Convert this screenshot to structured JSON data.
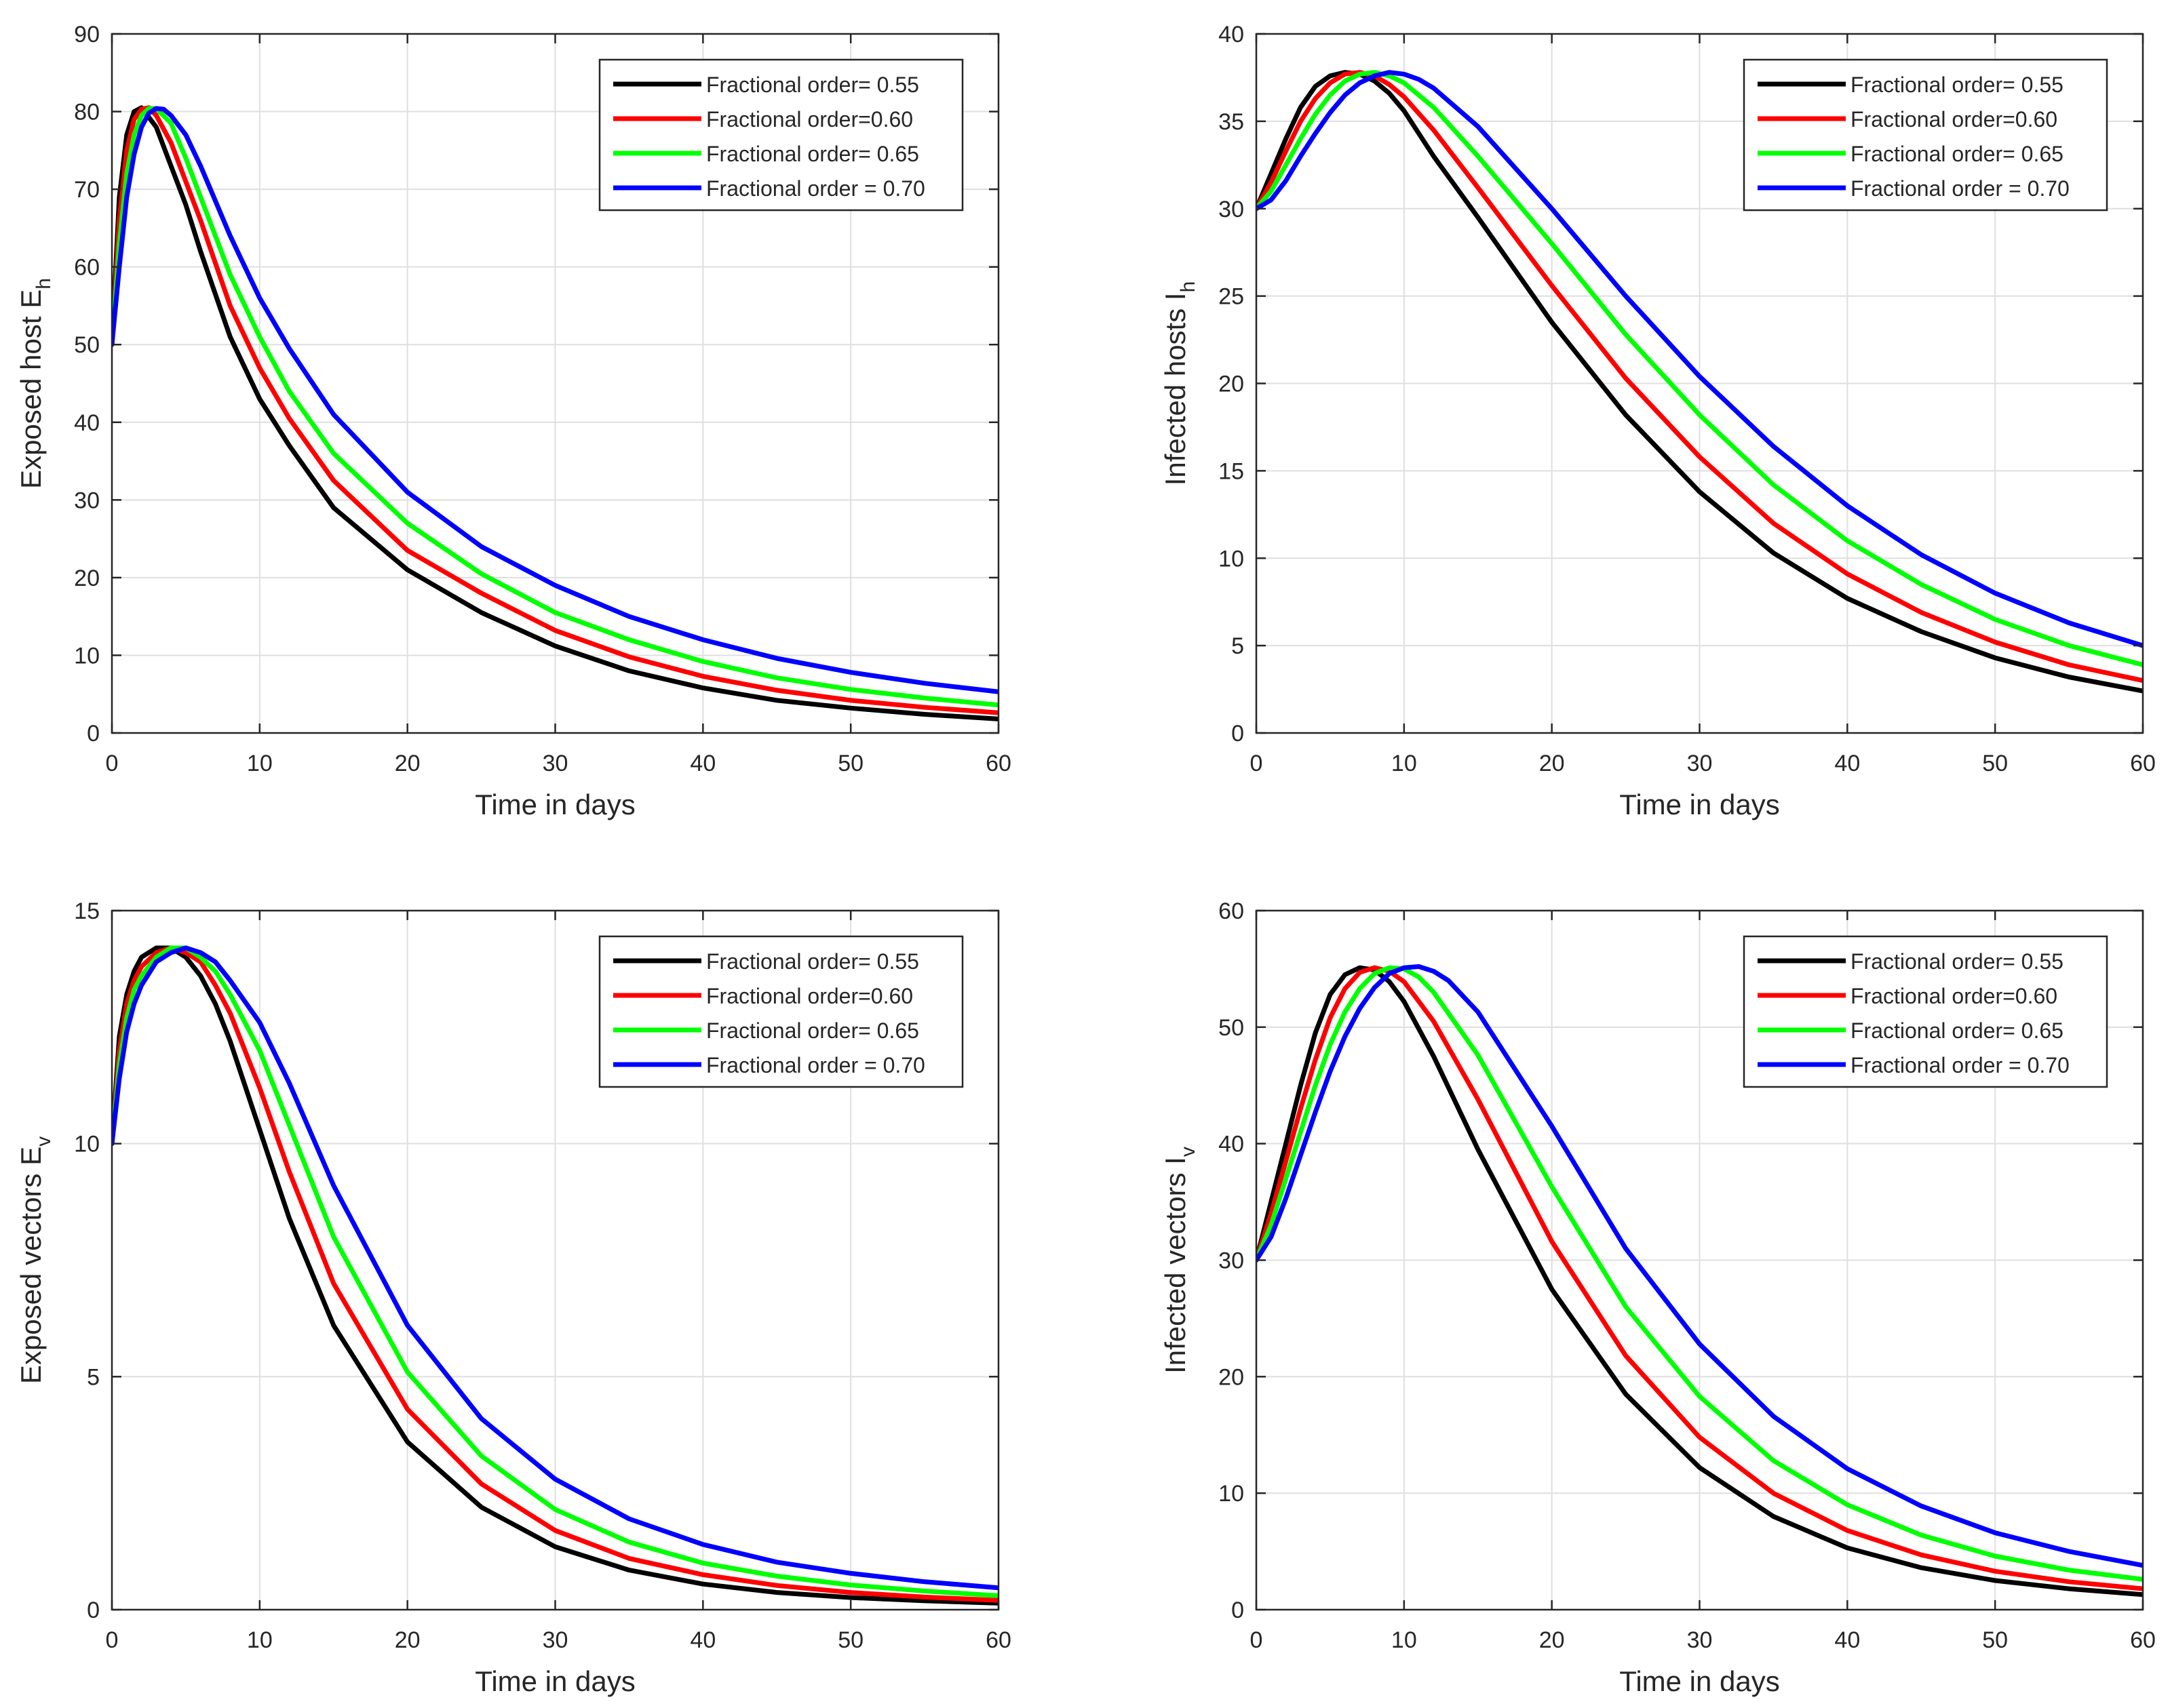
{
  "chart_data": [
    {
      "type": "line",
      "xlabel": "Time in days",
      "ylabel": "Exposed host E",
      "ylabel_sub": "h",
      "xlim": [
        0,
        60
      ],
      "ylim": [
        0,
        90
      ],
      "xticks": [
        0,
        10,
        20,
        30,
        40,
        50,
        60
      ],
      "yticks": [
        0,
        10,
        20,
        30,
        40,
        50,
        60,
        70,
        80,
        90
      ],
      "grid": true,
      "legend_position": "top-right",
      "series": [
        {
          "name": "Fractional order= 0.55",
          "color": "#000000",
          "x": [
            0,
            0.5,
            1,
            1.5,
            2,
            3,
            4,
            5,
            6,
            8,
            10,
            12,
            15,
            20,
            25,
            30,
            35,
            40,
            45,
            50,
            55,
            60
          ],
          "y": [
            50,
            69,
            77,
            80,
            80.5,
            78,
            73,
            68,
            62,
            51,
            43,
            37,
            29,
            21,
            15.5,
            11.2,
            8,
            5.8,
            4.2,
            3.2,
            2.4,
            1.8
          ]
        },
        {
          "name": "Fractional order=0.60",
          "color": "#ff0000",
          "x": [
            0,
            0.5,
            1,
            1.5,
            2,
            2.5,
            3,
            4,
            5,
            6,
            8,
            10,
            12,
            15,
            20,
            25,
            30,
            35,
            40,
            45,
            50,
            55,
            60
          ],
          "y": [
            50,
            66,
            75,
            79,
            80.3,
            80.5,
            79.5,
            76,
            71,
            66,
            55,
            47,
            40.5,
            32.5,
            23.5,
            18,
            13.2,
            9.8,
            7.3,
            5.5,
            4.2,
            3.3,
            2.6
          ]
        },
        {
          "name": "Fractional order= 0.65",
          "color": "#00ff00",
          "x": [
            0,
            0.5,
            1,
            1.5,
            2,
            2.5,
            3,
            4,
            5,
            6,
            8,
            10,
            12,
            15,
            20,
            25,
            30,
            35,
            40,
            45,
            50,
            55,
            60
          ],
          "y": [
            50,
            63,
            72,
            77,
            79.5,
            80.4,
            80.4,
            78.5,
            74,
            69,
            59,
            51,
            44,
            36,
            27,
            20.5,
            15.5,
            12,
            9.2,
            7.1,
            5.6,
            4.5,
            3.6
          ]
        },
        {
          "name": "Fractional order = 0.70",
          "color": "#0000ff",
          "x": [
            0,
            0.5,
            1,
            1.5,
            2,
            2.5,
            3,
            3.5,
            4,
            5,
            6,
            8,
            10,
            12,
            15,
            20,
            25,
            30,
            35,
            40,
            45,
            50,
            55,
            60
          ],
          "y": [
            50,
            60,
            69,
            74.5,
            78,
            79.8,
            80.4,
            80.3,
            79.5,
            77,
            73,
            64,
            56,
            49.5,
            41,
            31,
            24,
            19,
            15,
            12,
            9.6,
            7.8,
            6.4,
            5.3
          ]
        }
      ]
    },
    {
      "type": "line",
      "xlabel": "Time in days",
      "ylabel": "Infected  hosts I",
      "ylabel_sub": "h",
      "xlim": [
        0,
        60
      ],
      "ylim": [
        0,
        40
      ],
      "xticks": [
        0,
        10,
        20,
        30,
        40,
        50,
        60
      ],
      "yticks": [
        0,
        5,
        10,
        15,
        20,
        25,
        30,
        35,
        40
      ],
      "grid": true,
      "legend_position": "top-right",
      "series": [
        {
          "name": "Fractional order= 0.55",
          "color": "#000000",
          "x": [
            0,
            1,
            2,
            3,
            4,
            5,
            6,
            7,
            8,
            9,
            10,
            12,
            15,
            20,
            25,
            30,
            35,
            40,
            45,
            50,
            55,
            60
          ],
          "y": [
            30,
            32,
            34,
            35.8,
            37,
            37.6,
            37.8,
            37.7,
            37.3,
            36.6,
            35.6,
            33,
            29.5,
            23.5,
            18.2,
            13.8,
            10.3,
            7.7,
            5.8,
            4.3,
            3.2,
            2.4
          ]
        },
        {
          "name": "Fractional order=0.60",
          "color": "#ff0000",
          "x": [
            0,
            1,
            2,
            3,
            4,
            5,
            6,
            7,
            8,
            9,
            10,
            12,
            15,
            20,
            25,
            30,
            35,
            40,
            45,
            50,
            55,
            60
          ],
          "y": [
            30,
            31.5,
            33.3,
            35,
            36.3,
            37.2,
            37.7,
            37.8,
            37.6,
            37.1,
            36.4,
            34.5,
            31.2,
            25.6,
            20.3,
            15.8,
            12,
            9.1,
            6.9,
            5.2,
            3.9,
            3
          ]
        },
        {
          "name": "Fractional order= 0.65",
          "color": "#00ff00",
          "x": [
            0,
            1,
            2,
            3,
            4,
            5,
            6,
            7,
            8,
            9,
            10,
            12,
            15,
            20,
            25,
            30,
            35,
            40,
            45,
            50,
            55,
            60
          ],
          "y": [
            30,
            31,
            32.5,
            34,
            35.4,
            36.5,
            37.3,
            37.7,
            37.8,
            37.6,
            37.2,
            35.8,
            33,
            28,
            22.8,
            18.2,
            14.2,
            11,
            8.5,
            6.5,
            5,
            3.9
          ]
        },
        {
          "name": "Fractional order = 0.70",
          "color": "#0000ff",
          "x": [
            0,
            1,
            2,
            3,
            4,
            5,
            6,
            7,
            8,
            9,
            10,
            11,
            12,
            15,
            20,
            25,
            30,
            35,
            40,
            45,
            50,
            55,
            60
          ],
          "y": [
            30,
            30.5,
            31.6,
            33,
            34.3,
            35.5,
            36.5,
            37.2,
            37.6,
            37.8,
            37.7,
            37.4,
            36.9,
            34.7,
            30,
            25,
            20.4,
            16.4,
            13,
            10.2,
            8,
            6.3,
            5
          ]
        }
      ]
    },
    {
      "type": "line",
      "xlabel": "Time in days",
      "ylabel": "Exposed vectors E",
      "ylabel_sub": "v",
      "xlim": [
        0,
        60
      ],
      "ylim": [
        0,
        15
      ],
      "xticks": [
        0,
        10,
        20,
        30,
        40,
        50,
        60
      ],
      "yticks": [
        0,
        5,
        10,
        15
      ],
      "grid": true,
      "legend_position": "top-right",
      "series": [
        {
          "name": "Fractional order= 0.55",
          "color": "#000000",
          "x": [
            0,
            0.5,
            1,
            1.5,
            2,
            3,
            4,
            5,
            6,
            7,
            8,
            10,
            12,
            15,
            20,
            25,
            30,
            35,
            40,
            45,
            50,
            55,
            60
          ],
          "y": [
            10,
            12.3,
            13.2,
            13.7,
            14,
            14.2,
            14.2,
            14,
            13.6,
            13,
            12.2,
            10.3,
            8.4,
            6.1,
            3.6,
            2.2,
            1.35,
            0.85,
            0.55,
            0.37,
            0.26,
            0.19,
            0.14
          ]
        },
        {
          "name": "Fractional order=0.60",
          "color": "#ff0000",
          "x": [
            0,
            0.5,
            1,
            1.5,
            2,
            3,
            4,
            5,
            6,
            7,
            8,
            10,
            12,
            15,
            20,
            25,
            30,
            35,
            40,
            45,
            50,
            55,
            60
          ],
          "y": [
            10,
            12,
            13,
            13.5,
            13.8,
            14.1,
            14.2,
            14.1,
            13.9,
            13.4,
            12.8,
            11.2,
            9.4,
            7,
            4.3,
            2.7,
            1.7,
            1.1,
            0.75,
            0.52,
            0.37,
            0.27,
            0.2
          ]
        },
        {
          "name": "Fractional order= 0.65",
          "color": "#00ff00",
          "x": [
            0,
            0.5,
            1,
            1.5,
            2,
            3,
            4,
            5,
            6,
            7,
            8,
            10,
            12,
            15,
            20,
            25,
            30,
            35,
            40,
            45,
            50,
            55,
            60
          ],
          "y": [
            10,
            11.7,
            12.7,
            13.3,
            13.6,
            14,
            14.2,
            14.2,
            14,
            13.7,
            13.2,
            12,
            10.4,
            8,
            5.1,
            3.3,
            2.15,
            1.45,
            1,
            0.72,
            0.53,
            0.4,
            0.3
          ]
        },
        {
          "name": "Fractional order = 0.70",
          "color": "#0000ff",
          "x": [
            0,
            0.5,
            1,
            1.5,
            2,
            3,
            4,
            5,
            6,
            7,
            8,
            10,
            12,
            15,
            20,
            25,
            30,
            35,
            40,
            45,
            50,
            55,
            60
          ],
          "y": [
            10,
            11.4,
            12.4,
            13,
            13.4,
            13.9,
            14.1,
            14.2,
            14.1,
            13.9,
            13.5,
            12.6,
            11.3,
            9.1,
            6.1,
            4.1,
            2.8,
            1.95,
            1.4,
            1.02,
            0.78,
            0.6,
            0.47
          ]
        }
      ]
    },
    {
      "type": "line",
      "xlabel": "Time in days",
      "ylabel": "Infected vectors I",
      "ylabel_sub": "v",
      "xlim": [
        0,
        60
      ],
      "ylim": [
        0,
        60
      ],
      "xticks": [
        0,
        10,
        20,
        30,
        40,
        50,
        60
      ],
      "yticks": [
        0,
        10,
        20,
        30,
        40,
        50,
        60
      ],
      "grid": true,
      "legend_position": "top-right",
      "series": [
        {
          "name": "Fractional order= 0.55",
          "color": "#000000",
          "x": [
            0,
            1,
            2,
            3,
            4,
            5,
            6,
            7,
            8,
            9,
            10,
            12,
            15,
            20,
            25,
            30,
            35,
            40,
            45,
            50,
            55,
            60
          ],
          "y": [
            30,
            35,
            40,
            45,
            49.5,
            52.8,
            54.5,
            55.1,
            54.9,
            53.9,
            52.2,
            47.5,
            39.5,
            27.5,
            18.5,
            12.2,
            8,
            5.3,
            3.6,
            2.5,
            1.8,
            1.3
          ]
        },
        {
          "name": "Fractional order=0.60",
          "color": "#ff0000",
          "x": [
            0,
            1,
            2,
            3,
            4,
            5,
            6,
            7,
            8,
            9,
            10,
            12,
            15,
            20,
            25,
            30,
            35,
            40,
            45,
            50,
            55,
            60
          ],
          "y": [
            30,
            34,
            38.5,
            43,
            47.2,
            50.8,
            53.3,
            54.7,
            55.1,
            54.8,
            53.9,
            50.5,
            43.8,
            31.6,
            21.8,
            14.8,
            10,
            6.8,
            4.7,
            3.3,
            2.4,
            1.8
          ]
        },
        {
          "name": "Fractional order= 0.65",
          "color": "#00ff00",
          "x": [
            0,
            1,
            2,
            3,
            4,
            5,
            6,
            7,
            8,
            9,
            10,
            11,
            12,
            15,
            20,
            25,
            30,
            35,
            40,
            45,
            50,
            55,
            60
          ],
          "y": [
            30,
            33,
            37,
            41,
            45,
            48.5,
            51.3,
            53.3,
            54.6,
            55.1,
            55,
            54.3,
            53,
            47.6,
            36.3,
            26,
            18.3,
            12.8,
            9,
            6.4,
            4.6,
            3.4,
            2.6
          ]
        },
        {
          "name": "Fractional order = 0.70",
          "color": "#0000ff",
          "x": [
            0,
            1,
            2,
            3,
            4,
            5,
            6,
            7,
            8,
            9,
            10,
            11,
            12,
            13,
            15,
            20,
            25,
            30,
            35,
            40,
            45,
            50,
            55,
            60
          ],
          "y": [
            30,
            32,
            35.3,
            39,
            42.7,
            46.2,
            49.2,
            51.6,
            53.4,
            54.6,
            55.1,
            55.2,
            54.8,
            54,
            51.3,
            41.5,
            31,
            22.8,
            16.6,
            12.1,
            8.9,
            6.6,
            5,
            3.8
          ]
        }
      ]
    }
  ]
}
